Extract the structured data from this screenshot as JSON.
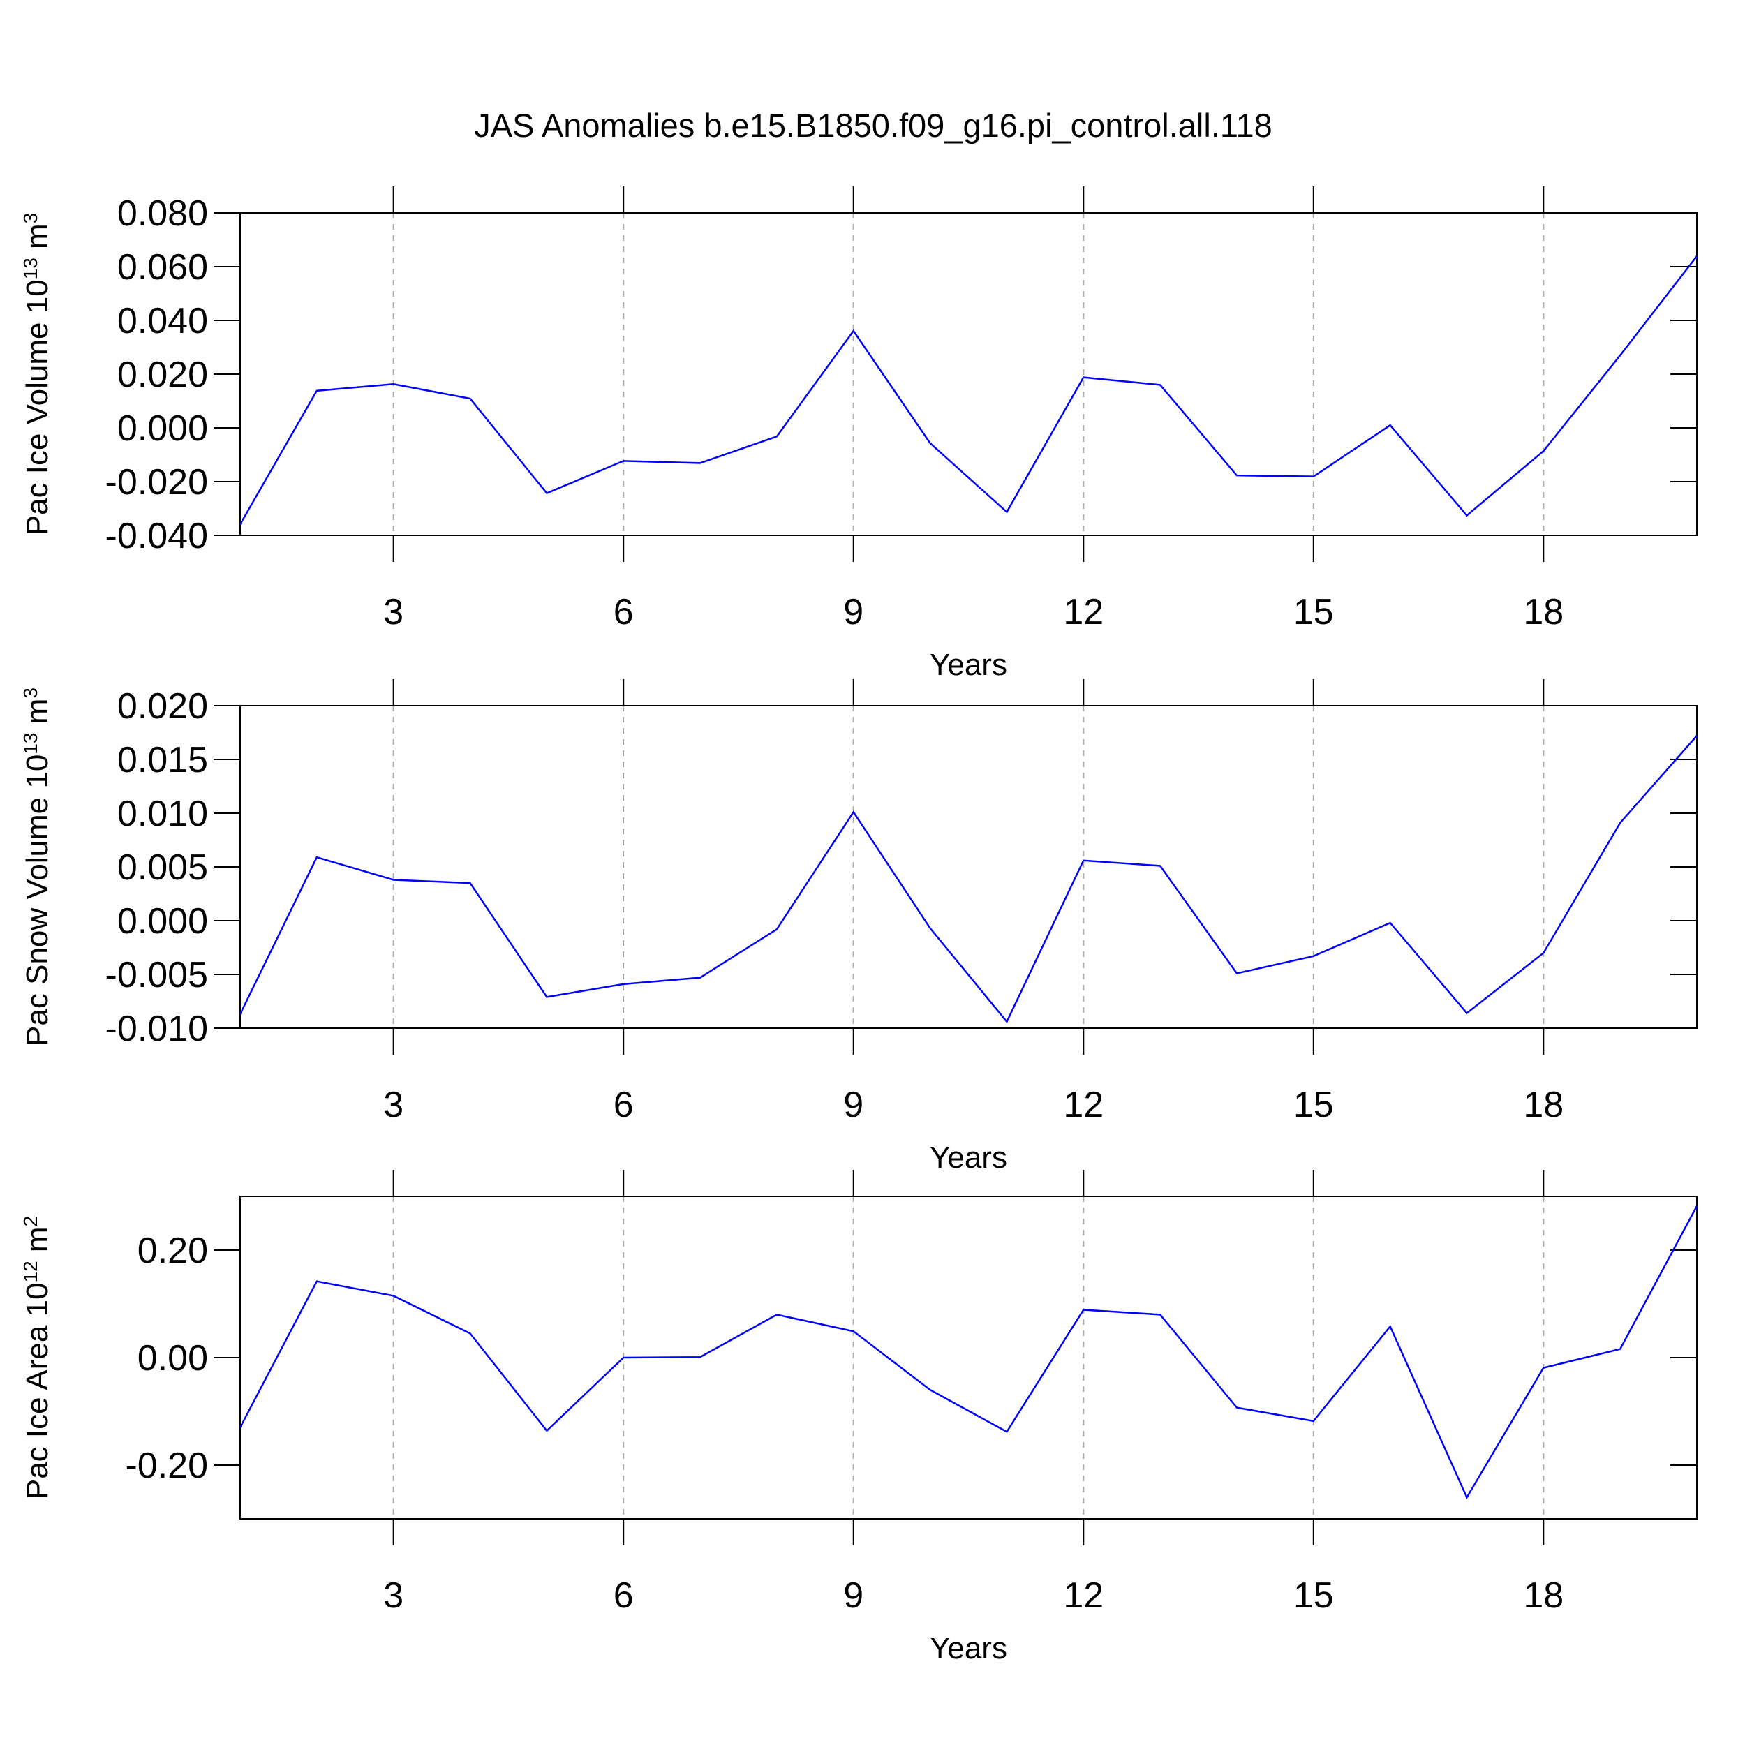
{
  "chart_data": [
    {
      "type": "line",
      "title": "JAS Anomalies b.e15.B1850.f09_g16.pi_control.all.118",
      "ylabel": [
        "Pac Ice Volume 10",
        "13",
        " m",
        "3"
      ],
      "xlabel": "Years",
      "x": [
        1,
        2,
        3,
        4,
        5,
        6,
        7,
        8,
        9,
        10,
        11,
        12,
        13,
        14,
        15,
        16,
        17,
        18,
        19,
        20
      ],
      "series": [
        {
          "color": "#0000ff",
          "values": [
            -0.0359,
            0.0138,
            0.0163,
            0.0109,
            -0.0243,
            -0.0123,
            -0.0131,
            -0.0032,
            0.0361,
            -0.0057,
            -0.0313,
            0.0188,
            0.016,
            -0.0177,
            -0.0181,
            0.001,
            -0.0326,
            -0.0086,
            0.027,
            0.0639
          ]
        }
      ],
      "xlim": [
        1,
        20
      ],
      "xticks": [
        3,
        6,
        9,
        12,
        15,
        18
      ],
      "ylim": [
        -0.04,
        0.08
      ],
      "yticks": [
        {
          "value": -0.04,
          "label": "-0.040"
        },
        {
          "value": -0.02,
          "label": "-0.020"
        },
        {
          "value": 0,
          "label": "0.000"
        },
        {
          "value": 0.02,
          "label": "0.020"
        },
        {
          "value": 0.04,
          "label": "0.040"
        },
        {
          "value": 0.06,
          "label": "0.060"
        },
        {
          "value": 0.08,
          "label": "0.080"
        }
      ],
      "grid": true
    },
    {
      "type": "line",
      "ylabel": [
        "Pac Snow Volume 10",
        "13",
        " m",
        "3"
      ],
      "xlabel": "Years",
      "x": [
        1,
        2,
        3,
        4,
        5,
        6,
        7,
        8,
        9,
        10,
        11,
        12,
        13,
        14,
        15,
        16,
        17,
        18,
        19,
        20
      ],
      "series": [
        {
          "color": "#0000ff",
          "values": [
            -0.0087,
            0.0059,
            0.0038,
            0.0035,
            -0.0071,
            -0.0059,
            -0.0053,
            -0.0008,
            0.0101,
            -0.0007,
            -0.0094,
            0.0056,
            0.0051,
            -0.0049,
            -0.0033,
            -0.0002,
            -0.0086,
            -0.003,
            0.0091,
            0.0172
          ]
        }
      ],
      "xlim": [
        1,
        20
      ],
      "xticks": [
        3,
        6,
        9,
        12,
        15,
        18
      ],
      "ylim": [
        -0.01,
        0.02
      ],
      "yticks": [
        {
          "value": -0.01,
          "label": "-0.010"
        },
        {
          "value": -0.005,
          "label": "-0.005"
        },
        {
          "value": 0,
          "label": "0.000"
        },
        {
          "value": 0.005,
          "label": "0.005"
        },
        {
          "value": 0.01,
          "label": "0.010"
        },
        {
          "value": 0.015,
          "label": "0.015"
        },
        {
          "value": 0.02,
          "label": "0.020"
        }
      ],
      "grid": true
    },
    {
      "type": "line",
      "ylabel": [
        "Pac Ice Area 10",
        "12",
        " m",
        "2"
      ],
      "xlabel": "Years",
      "x": [
        1,
        2,
        3,
        4,
        5,
        6,
        7,
        8,
        9,
        10,
        11,
        12,
        13,
        14,
        15,
        16,
        17,
        18,
        19,
        20
      ],
      "series": [
        {
          "color": "#0000ff",
          "values": [
            -0.13,
            0.142,
            0.115,
            0.045,
            -0.136,
            0.0,
            0.001,
            0.08,
            0.049,
            -0.06,
            -0.138,
            0.089,
            0.08,
            -0.093,
            -0.118,
            0.058,
            -0.26,
            -0.019,
            0.016,
            0.282
          ]
        }
      ],
      "xlim": [
        1,
        20
      ],
      "xticks": [
        3,
        6,
        9,
        12,
        15,
        18
      ],
      "ylim": [
        -0.3,
        0.3
      ],
      "yticks": [
        {
          "value": -0.2,
          "label": "-0.20"
        },
        {
          "value": 0,
          "label": "0.00"
        },
        {
          "value": 0.2,
          "label": "0.20"
        }
      ],
      "grid": true
    }
  ]
}
